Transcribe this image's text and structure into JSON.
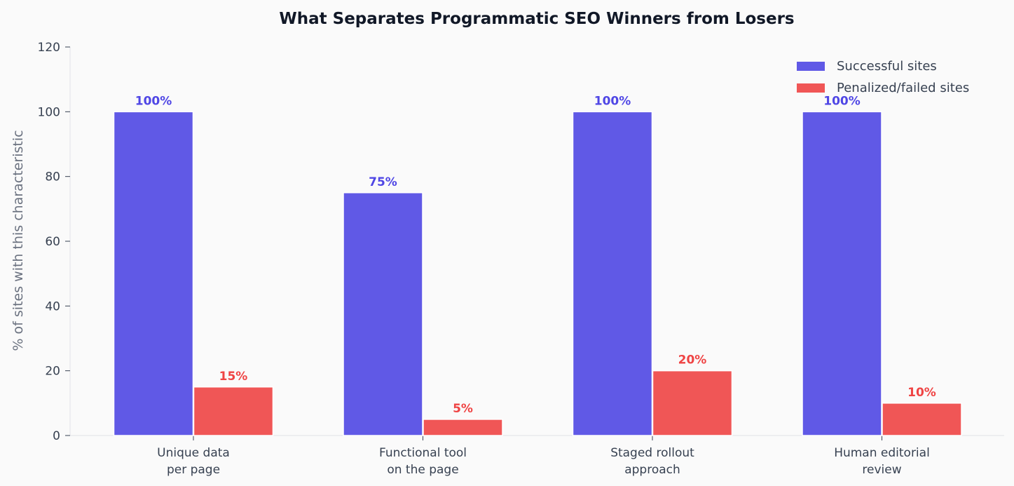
{
  "chart_data": {
    "type": "bar",
    "title": "What Separates Programmatic SEO Winners from Losers",
    "xlabel": "",
    "ylabel": "% of sites with this characteristic",
    "categories": [
      [
        "Unique data",
        "per page"
      ],
      [
        "Functional tool",
        "on the page"
      ],
      [
        "Staged rollout",
        "approach"
      ],
      [
        "Human editorial",
        "review"
      ]
    ],
    "series": [
      {
        "name": "Successful sites",
        "color": "#6059e6",
        "label_color": "#4f46e5",
        "values": [
          100,
          75,
          100,
          100
        ],
        "labels": [
          "100%",
          "75%",
          "100%",
          "100%"
        ]
      },
      {
        "name": "Penalized/failed sites",
        "color": "#f05656",
        "label_color": "#ef4444",
        "values": [
          15,
          5,
          20,
          10
        ],
        "labels": [
          "15%",
          "5%",
          "20%",
          "10%"
        ]
      }
    ],
    "ylim": [
      0,
      120
    ],
    "yticks": [
      0,
      20,
      40,
      60,
      80,
      100,
      120
    ],
    "grid": false,
    "legend_position": "top-right"
  }
}
